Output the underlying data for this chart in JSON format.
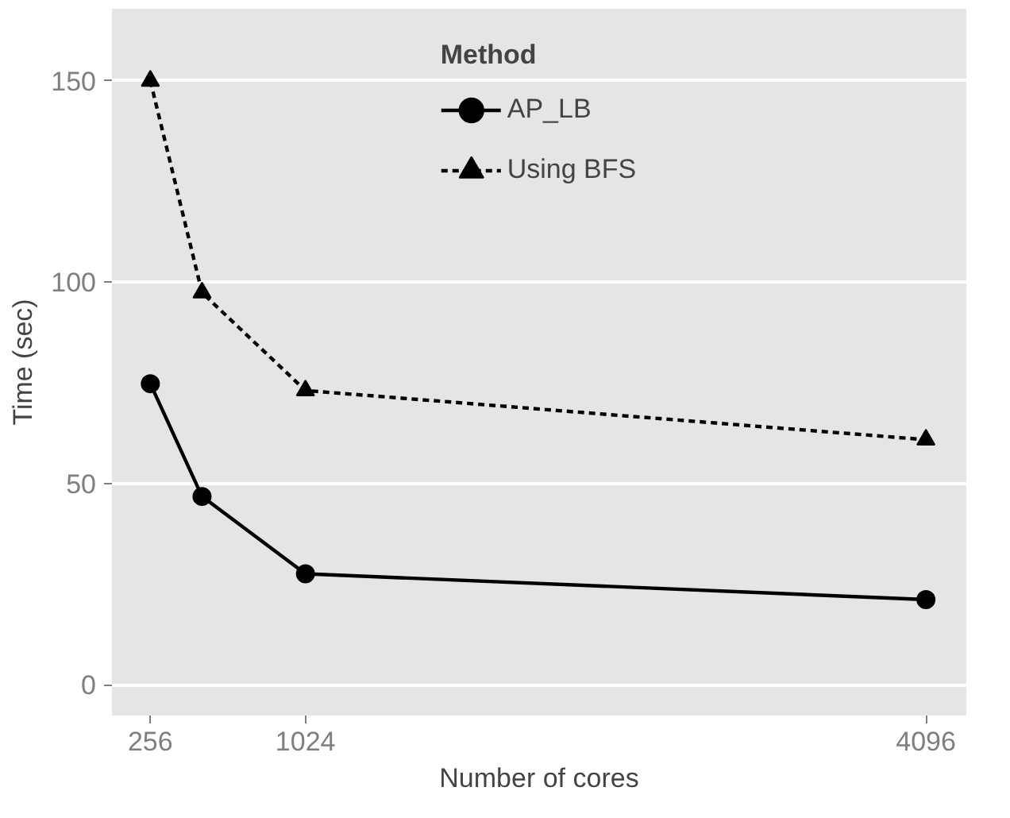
{
  "chart_data": {
    "type": "line",
    "xlabel": "Number of cores",
    "ylabel": "Time (sec)",
    "legend_title": "Method",
    "x": [
      256,
      512,
      1024,
      4096
    ],
    "series": [
      {
        "name": "AP_LB",
        "color": "#000000",
        "values": [
          74.8,
          46.8,
          27.6,
          21.2
        ],
        "marker": "circle",
        "line_style": "solid"
      },
      {
        "name": "Using BFS",
        "color": "#000000",
        "values": [
          150,
          97.4,
          73.1,
          60.9
        ],
        "marker": "triangle",
        "line_style": "dashed"
      }
    ],
    "xlim": [
      66,
      4296
    ],
    "ylim": [
      -7.6,
      167.9
    ],
    "xticks": [
      256,
      1024,
      4096
    ],
    "yticks": [
      0,
      50,
      100,
      150
    ],
    "grid": "y",
    "legend": "top"
  }
}
